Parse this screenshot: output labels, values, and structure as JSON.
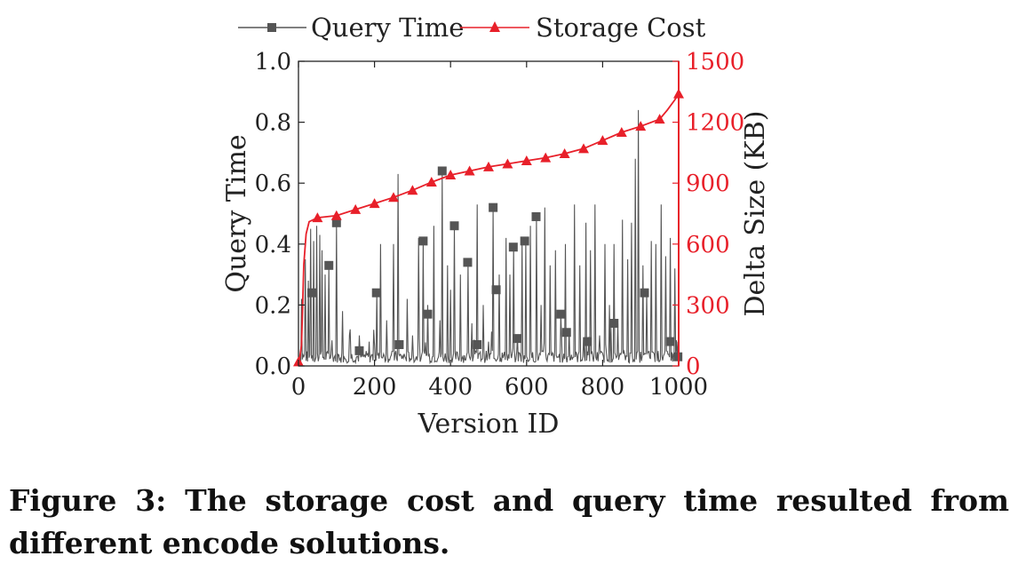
{
  "chart_data": {
    "type": "line",
    "xlabel": "Version ID",
    "ylabel": "Query Time",
    "y2label": "Delta Size (KB)",
    "xlim": [
      0,
      1000
    ],
    "ylim": [
      0,
      1.0
    ],
    "y2lim": [
      0,
      1500
    ],
    "x_ticks": [
      "0",
      "200",
      "400",
      "600",
      "800",
      "1000"
    ],
    "y_ticks": [
      "0.0",
      "0.2",
      "0.4",
      "0.6",
      "0.8",
      "1.0"
    ],
    "y2_ticks": [
      "0",
      "300",
      "600",
      "900",
      "1200",
      "1500"
    ],
    "legend": {
      "placement": "top"
    },
    "grid": false,
    "series": [
      {
        "name": "Query Time",
        "axis": "left",
        "color": "#555555",
        "marker": "square",
        "baseline": 0.03,
        "spikes": [
          [
            8,
            0.22
          ],
          [
            18,
            0.35
          ],
          [
            25,
            0.28
          ],
          [
            32,
            0.45
          ],
          [
            40,
            0.41
          ],
          [
            48,
            0.46
          ],
          [
            55,
            0.43
          ],
          [
            62,
            0.38
          ],
          [
            70,
            0.3
          ],
          [
            80,
            0.33
          ],
          [
            100,
            0.47
          ],
          [
            115,
            0.18
          ],
          [
            135,
            0.12
          ],
          [
            160,
            0.1
          ],
          [
            185,
            0.08
          ],
          [
            205,
            0.24
          ],
          [
            215,
            0.4
          ],
          [
            232,
            0.15
          ],
          [
            250,
            0.4
          ],
          [
            262,
            0.63
          ],
          [
            285,
            0.22
          ],
          [
            300,
            0.1
          ],
          [
            315,
            0.42
          ],
          [
            328,
            0.41
          ],
          [
            340,
            0.2
          ],
          [
            355,
            0.46
          ],
          [
            372,
            0.15
          ],
          [
            378,
            0.64
          ],
          [
            392,
            0.33
          ],
          [
            400,
            0.25
          ],
          [
            410,
            0.46
          ],
          [
            425,
            0.3
          ],
          [
            445,
            0.34
          ],
          [
            455,
            0.14
          ],
          [
            470,
            0.53
          ],
          [
            485,
            0.2
          ],
          [
            500,
            0.08
          ],
          [
            512,
            0.52
          ],
          [
            528,
            0.3
          ],
          [
            545,
            0.42
          ],
          [
            555,
            0.3
          ],
          [
            565,
            0.39
          ],
          [
            575,
            0.1
          ],
          [
            588,
            0.41
          ],
          [
            598,
            0.41
          ],
          [
            610,
            0.46
          ],
          [
            625,
            0.49
          ],
          [
            638,
            0.2
          ],
          [
            648,
            0.52
          ],
          [
            662,
            0.33
          ],
          [
            675,
            0.38
          ],
          [
            690,
            0.17
          ],
          [
            702,
            0.4
          ],
          [
            712,
            0.12
          ],
          [
            725,
            0.53
          ],
          [
            740,
            0.33
          ],
          [
            755,
            0.47
          ],
          [
            768,
            0.38
          ],
          [
            780,
            0.53
          ],
          [
            792,
            0.1
          ],
          [
            805,
            0.4
          ],
          [
            818,
            0.2
          ],
          [
            830,
            0.4
          ],
          [
            840,
            0.14
          ],
          [
            852,
            0.48
          ],
          [
            865,
            0.35
          ],
          [
            875,
            0.47
          ],
          [
            885,
            0.68
          ],
          [
            893,
            0.84
          ],
          [
            905,
            0.33
          ],
          [
            915,
            0.24
          ],
          [
            928,
            0.41
          ],
          [
            940,
            0.4
          ],
          [
            953,
            0.53
          ],
          [
            965,
            0.36
          ],
          [
            978,
            0.42
          ],
          [
            990,
            0.32
          ],
          [
            998,
            0.08
          ]
        ],
        "markers": [
          [
            35,
            0.24
          ],
          [
            80,
            0.33
          ],
          [
            100,
            0.47
          ],
          [
            160,
            0.05
          ],
          [
            205,
            0.24
          ],
          [
            265,
            0.07
          ],
          [
            328,
            0.41
          ],
          [
            340,
            0.17
          ],
          [
            378,
            0.64
          ],
          [
            410,
            0.46
          ],
          [
            445,
            0.34
          ],
          [
            470,
            0.07
          ],
          [
            512,
            0.52
          ],
          [
            520,
            0.25
          ],
          [
            565,
            0.39
          ],
          [
            575,
            0.09
          ],
          [
            595,
            0.41
          ],
          [
            625,
            0.49
          ],
          [
            690,
            0.17
          ],
          [
            705,
            0.11
          ],
          [
            760,
            0.08
          ],
          [
            830,
            0.14
          ],
          [
            910,
            0.24
          ],
          [
            978,
            0.08
          ],
          [
            998,
            0.03
          ]
        ]
      },
      {
        "name": "Storage Cost",
        "axis": "right",
        "color": "#e8202a",
        "marker": "triangle",
        "line": [
          [
            0,
            0
          ],
          [
            8,
            100
          ],
          [
            14,
            500
          ],
          [
            20,
            650
          ],
          [
            28,
            710
          ],
          [
            50,
            730
          ],
          [
            100,
            740
          ],
          [
            150,
            770
          ],
          [
            200,
            800
          ],
          [
            250,
            830
          ],
          [
            300,
            865
          ],
          [
            350,
            905
          ],
          [
            400,
            940
          ],
          [
            450,
            960
          ],
          [
            500,
            980
          ],
          [
            550,
            995
          ],
          [
            600,
            1010
          ],
          [
            650,
            1025
          ],
          [
            700,
            1045
          ],
          [
            750,
            1070
          ],
          [
            800,
            1110
          ],
          [
            850,
            1150
          ],
          [
            900,
            1180
          ],
          [
            950,
            1215
          ],
          [
            970,
            1260
          ],
          [
            990,
            1310
          ],
          [
            1000,
            1340
          ]
        ],
        "markers": [
          [
            0,
            20
          ],
          [
            50,
            730
          ],
          [
            100,
            740
          ],
          [
            150,
            770
          ],
          [
            200,
            800
          ],
          [
            250,
            830
          ],
          [
            300,
            865
          ],
          [
            350,
            905
          ],
          [
            400,
            940
          ],
          [
            450,
            960
          ],
          [
            500,
            980
          ],
          [
            550,
            995
          ],
          [
            600,
            1010
          ],
          [
            650,
            1025
          ],
          [
            700,
            1045
          ],
          [
            750,
            1070
          ],
          [
            800,
            1110
          ],
          [
            850,
            1150
          ],
          [
            900,
            1180
          ],
          [
            950,
            1215
          ],
          [
            1000,
            1340
          ]
        ]
      }
    ]
  },
  "caption": "Figure 3: The storage cost and query time resulted from different encode solutions."
}
